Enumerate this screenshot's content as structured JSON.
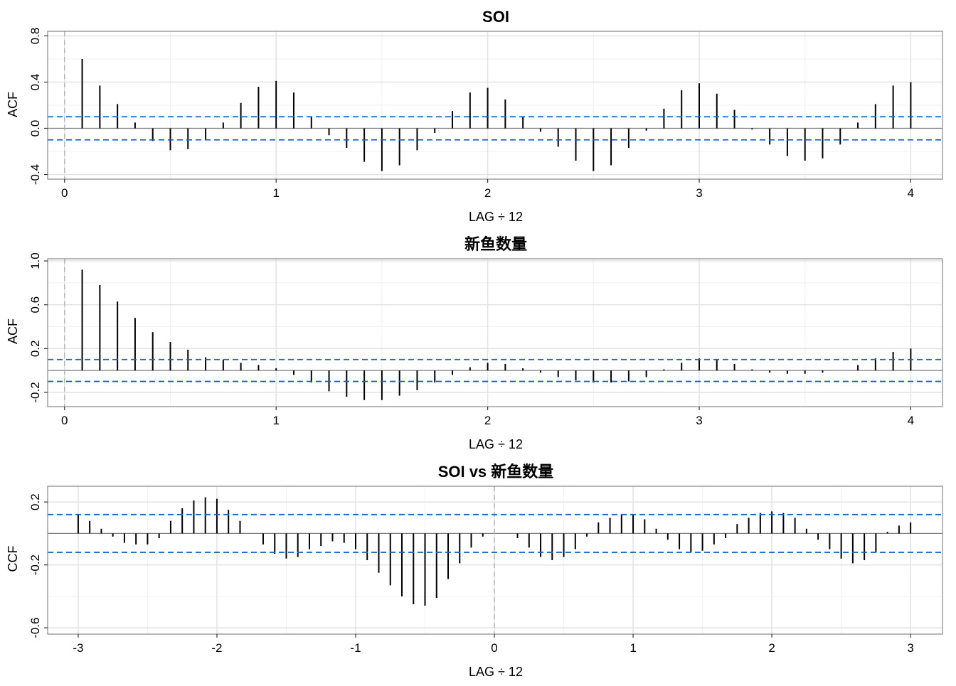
{
  "chart_data": [
    {
      "type": "bar",
      "title": "SOI",
      "xlabel": "LAG ÷ 12",
      "ylabel": "ACF",
      "xlim": [
        -0.08,
        4.15
      ],
      "ylim": [
        -0.44,
        0.84
      ],
      "xticks": [
        0,
        1,
        2,
        3,
        4
      ],
      "xtick_labels": [
        "0",
        "1",
        "2",
        "3",
        "4"
      ],
      "yticks": [
        -0.4,
        0.0,
        0.4,
        0.8
      ],
      "ytick_labels": [
        "-0.4",
        "0.0",
        "0.4",
        "0.8"
      ],
      "conf_band": 0.1,
      "grid": true,
      "colors": {
        "bars": "#000000",
        "band": "#1565C0",
        "zero": "#808080"
      },
      "x": [
        0.0833,
        0.1667,
        0.25,
        0.3333,
        0.4167,
        0.5,
        0.5833,
        0.6667,
        0.75,
        0.8333,
        0.9167,
        1.0,
        1.0833,
        1.1667,
        1.25,
        1.3333,
        1.4167,
        1.5,
        1.5833,
        1.6667,
        1.75,
        1.8333,
        1.9167,
        2.0,
        2.0833,
        2.1667,
        2.25,
        2.3333,
        2.4167,
        2.5,
        2.5833,
        2.6667,
        2.75,
        2.8333,
        2.9167,
        3.0,
        3.0833,
        3.1667,
        3.25,
        3.3333,
        3.4167,
        3.5,
        3.5833,
        3.6667,
        3.75,
        3.8333,
        3.9167,
        4.0
      ],
      "values": [
        0.6,
        0.37,
        0.21,
        0.05,
        -0.11,
        -0.19,
        -0.18,
        -0.1,
        0.05,
        0.22,
        0.36,
        0.41,
        0.31,
        0.1,
        -0.06,
        -0.17,
        -0.29,
        -0.37,
        -0.32,
        -0.19,
        -0.04,
        0.15,
        0.31,
        0.35,
        0.25,
        0.1,
        -0.03,
        -0.16,
        -0.28,
        -0.37,
        -0.32,
        -0.17,
        -0.02,
        0.17,
        0.33,
        0.39,
        0.3,
        0.16,
        -0.01,
        -0.14,
        -0.24,
        -0.28,
        -0.26,
        -0.14,
        0.05,
        0.21,
        0.37,
        0.4
      ]
    },
    {
      "type": "bar",
      "title": "新鱼数量",
      "xlabel": "LAG ÷ 12",
      "ylabel": "ACF",
      "xlim": [
        -0.08,
        4.15
      ],
      "ylim": [
        -0.33,
        1.02
      ],
      "xticks": [
        0,
        1,
        2,
        3,
        4
      ],
      "xtick_labels": [
        "0",
        "1",
        "2",
        "3",
        "4"
      ],
      "yticks": [
        -0.2,
        0.2,
        0.6,
        1.0
      ],
      "ytick_labels": [
        "-0.2",
        "0.2",
        "0.6",
        "1.0"
      ],
      "conf_band": 0.1,
      "grid": true,
      "colors": {
        "bars": "#000000",
        "band": "#1565C0",
        "zero": "#808080"
      },
      "x": [
        0.0833,
        0.1667,
        0.25,
        0.3333,
        0.4167,
        0.5,
        0.5833,
        0.6667,
        0.75,
        0.8333,
        0.9167,
        1.0,
        1.0833,
        1.1667,
        1.25,
        1.3333,
        1.4167,
        1.5,
        1.5833,
        1.6667,
        1.75,
        1.8333,
        1.9167,
        2.0,
        2.0833,
        2.1667,
        2.25,
        2.3333,
        2.4167,
        2.5,
        2.5833,
        2.6667,
        2.75,
        2.8333,
        2.9167,
        3.0,
        3.0833,
        3.1667,
        3.25,
        3.3333,
        3.4167,
        3.5,
        3.5833,
        3.6667,
        3.75,
        3.8333,
        3.9167,
        4.0
      ],
      "values": [
        0.92,
        0.78,
        0.63,
        0.48,
        0.35,
        0.26,
        0.19,
        0.12,
        0.1,
        0.07,
        0.05,
        0.02,
        -0.04,
        -0.11,
        -0.19,
        -0.24,
        -0.27,
        -0.27,
        -0.23,
        -0.18,
        -0.11,
        -0.04,
        0.03,
        0.07,
        0.06,
        0.02,
        -0.02,
        -0.06,
        -0.09,
        -0.11,
        -0.11,
        -0.1,
        -0.06,
        0.01,
        0.07,
        0.11,
        0.1,
        0.06,
        0.01,
        -0.02,
        -0.03,
        -0.03,
        -0.02,
        0.0,
        0.05,
        0.11,
        0.17,
        0.2
      ]
    },
    {
      "type": "bar",
      "title": "SOI vs 新鱼数量",
      "xlabel": "LAG ÷ 12",
      "ylabel": "CCF",
      "xlim": [
        -3.22,
        3.23
      ],
      "ylim": [
        -0.64,
        0.3
      ],
      "xticks": [
        -3,
        -2,
        -1,
        0,
        1,
        2,
        3
      ],
      "xtick_labels": [
        "-3",
        "-2",
        "-1",
        "0",
        "1",
        "2",
        "3"
      ],
      "yticks": [
        -0.6,
        -0.2,
        0.2
      ],
      "ytick_labels": [
        "-0.6",
        "-0.2",
        "0.2"
      ],
      "conf_band": 0.12,
      "grid": true,
      "colors": {
        "bars": "#000000",
        "band": "#1565C0",
        "zero": "#808080"
      },
      "x": [
        -3.0,
        -2.9167,
        -2.8333,
        -2.75,
        -2.6667,
        -2.5833,
        -2.5,
        -2.4167,
        -2.3333,
        -2.25,
        -2.1667,
        -2.0833,
        -2.0,
        -1.9167,
        -1.8333,
        -1.6667,
        -1.5833,
        -1.5,
        -1.4167,
        -1.3333,
        -1.25,
        -1.1667,
        -1.0833,
        -1.0,
        -0.9167,
        -0.8333,
        -0.75,
        -0.6667,
        -0.5833,
        -0.5,
        -0.4167,
        -0.3333,
        -0.25,
        -0.1667,
        -0.0833,
        0.0833,
        0.1667,
        0.25,
        0.3333,
        0.4167,
        0.5,
        0.5833,
        0.6667,
        0.75,
        0.8333,
        0.9167,
        1.0,
        1.0833,
        1.1667,
        1.25,
        1.3333,
        1.4167,
        1.5,
        1.5833,
        1.6667,
        1.75,
        1.8333,
        1.9167,
        2.0,
        2.0833,
        2.1667,
        2.25,
        2.3333,
        2.4167,
        2.5,
        2.5833,
        2.6667,
        2.75,
        2.8333,
        2.9167,
        3.0
      ],
      "values": [
        0.12,
        0.08,
        0.03,
        -0.02,
        -0.06,
        -0.07,
        -0.07,
        -0.03,
        0.08,
        0.16,
        0.21,
        0.23,
        0.22,
        0.15,
        0.08,
        -0.07,
        -0.13,
        -0.16,
        -0.15,
        -0.1,
        -0.08,
        -0.05,
        -0.06,
        -0.1,
        -0.17,
        -0.25,
        -0.33,
        -0.4,
        -0.45,
        -0.46,
        -0.41,
        -0.29,
        -0.19,
        -0.09,
        -0.02,
        0.0,
        -0.03,
        -0.09,
        -0.15,
        -0.17,
        -0.15,
        -0.1,
        -0.02,
        0.07,
        0.1,
        0.12,
        0.12,
        0.09,
        0.03,
        -0.04,
        -0.1,
        -0.12,
        -0.11,
        -0.07,
        -0.03,
        0.06,
        0.1,
        0.13,
        0.14,
        0.13,
        0.1,
        0.03,
        -0.04,
        -0.1,
        -0.16,
        -0.19,
        -0.17,
        -0.12,
        0.01,
        0.05,
        0.07
      ]
    }
  ]
}
